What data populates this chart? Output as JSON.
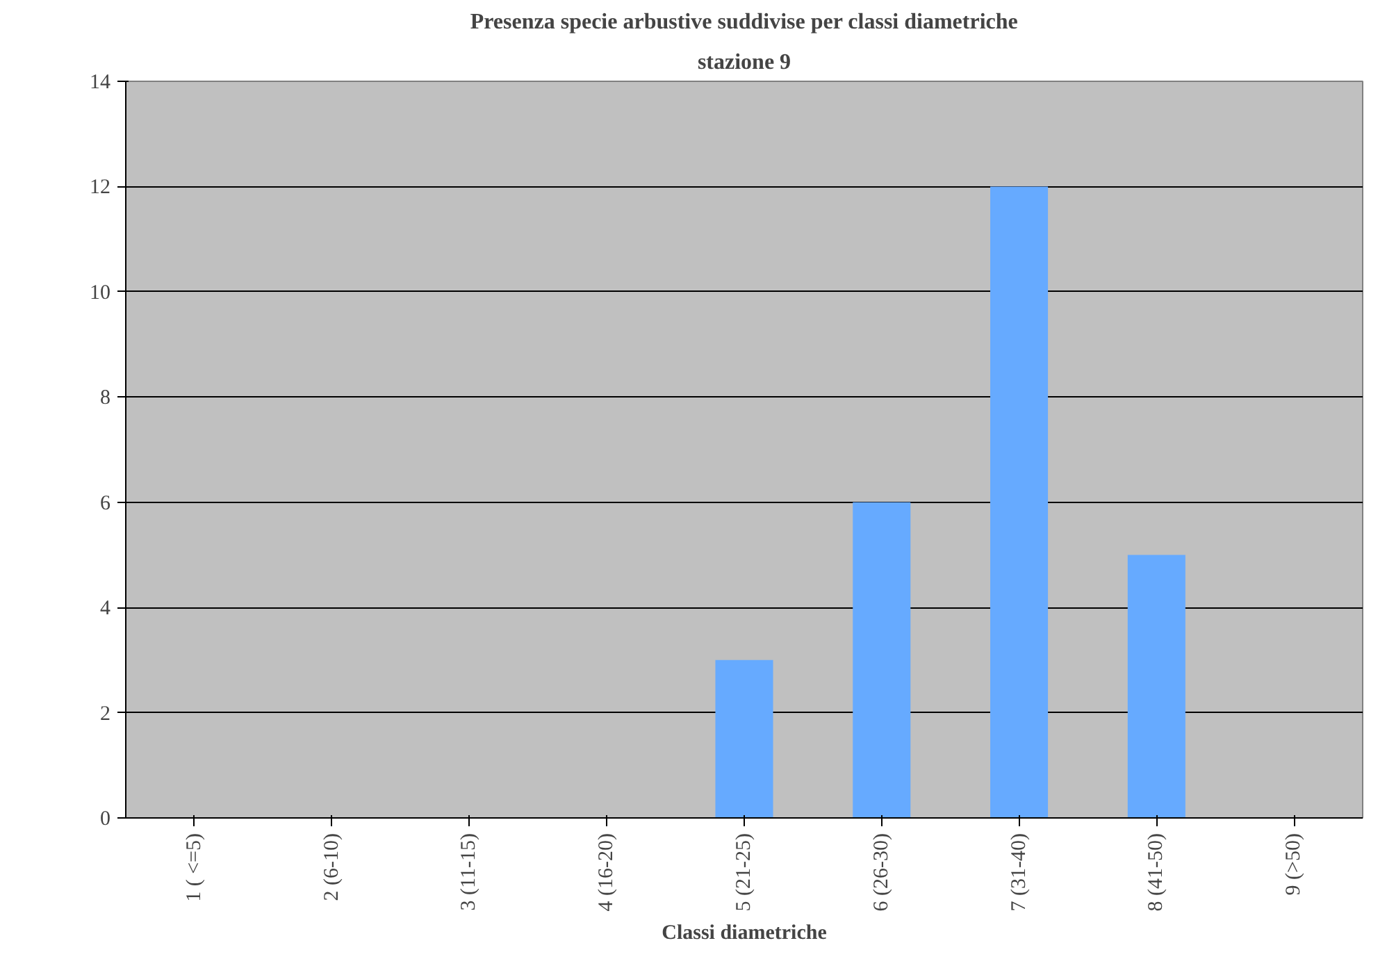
{
  "chart_data": {
    "type": "bar",
    "title": "Presenza specie arbustive suddivise per classi diametriche",
    "subtitle": "stazione 9",
    "xlabel": "Classi diametriche",
    "categories": [
      "1 ( <=5)",
      "2 (6-10)",
      "3 (11-15)",
      "4 (16-20)",
      "5 (21-25)",
      "6 (26-30)",
      "7 (31-40)",
      "8 (41-50)",
      "9 (>50)"
    ],
    "values": [
      0,
      0,
      0,
      0,
      3,
      6,
      12,
      5,
      0
    ],
    "color": "#66aaff",
    "ylim": [
      0,
      14
    ],
    "yticks": [
      0,
      2,
      4,
      6,
      8,
      10,
      12,
      14
    ],
    "grid": "y"
  }
}
